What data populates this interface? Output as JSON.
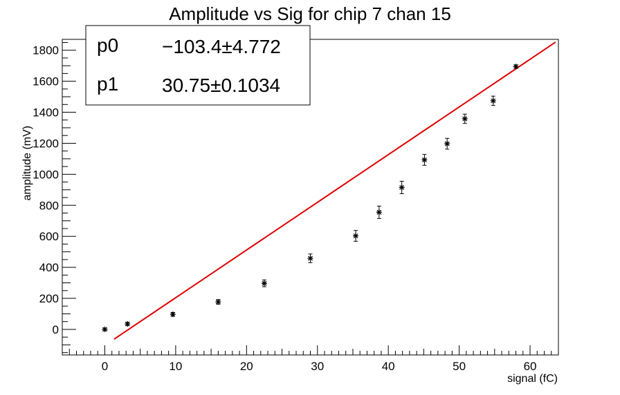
{
  "chart_data": {
    "type": "scatter",
    "title": "Amplitude vs Sig for chip 7 chan 15",
    "xlabel": "signal (fC)",
    "ylabel": "amplitude (mV)",
    "xlim": [
      -6,
      64
    ],
    "ylim": [
      -165,
      1870
    ],
    "x_ticks": [
      0,
      10,
      20,
      30,
      40,
      50,
      60
    ],
    "y_ticks": [
      0,
      200,
      400,
      600,
      800,
      1000,
      1200,
      1400,
      1600,
      1800
    ],
    "grid": false,
    "series": [
      {
        "kind": "points-with-errors",
        "marker": "asterisk",
        "color": "#000000",
        "points": [
          {
            "x": 0.0,
            "y": 0,
            "err": 8
          },
          {
            "x": 3.2,
            "y": 35,
            "err": 10
          },
          {
            "x": 9.6,
            "y": 97,
            "err": 12
          },
          {
            "x": 16.0,
            "y": 177,
            "err": 15
          },
          {
            "x": 22.5,
            "y": 297,
            "err": 22
          },
          {
            "x": 29.0,
            "y": 458,
            "err": 28
          },
          {
            "x": 35.4,
            "y": 603,
            "err": 35
          },
          {
            "x": 38.7,
            "y": 755,
            "err": 40
          },
          {
            "x": 41.9,
            "y": 915,
            "err": 40
          },
          {
            "x": 45.1,
            "y": 1093,
            "err": 35
          },
          {
            "x": 48.3,
            "y": 1197,
            "err": 35
          },
          {
            "x": 50.8,
            "y": 1358,
            "err": 30
          },
          {
            "x": 54.8,
            "y": 1474,
            "err": 30
          },
          {
            "x": 58.0,
            "y": 1695,
            "err": 10
          }
        ]
      },
      {
        "kind": "fit-line",
        "color": "#e00000",
        "x_range": [
          1.3,
          63.6
        ],
        "p0": -103.4,
        "p1": 30.75
      }
    ],
    "stats_box": {
      "placement": "top-left",
      "rows": [
        {
          "name": "p0",
          "value": "−103.4",
          "pm": "±",
          "error": "4.772"
        },
        {
          "name": "p1",
          "value": "30.75",
          "pm": "±",
          "error": "0.1034"
        }
      ]
    }
  }
}
